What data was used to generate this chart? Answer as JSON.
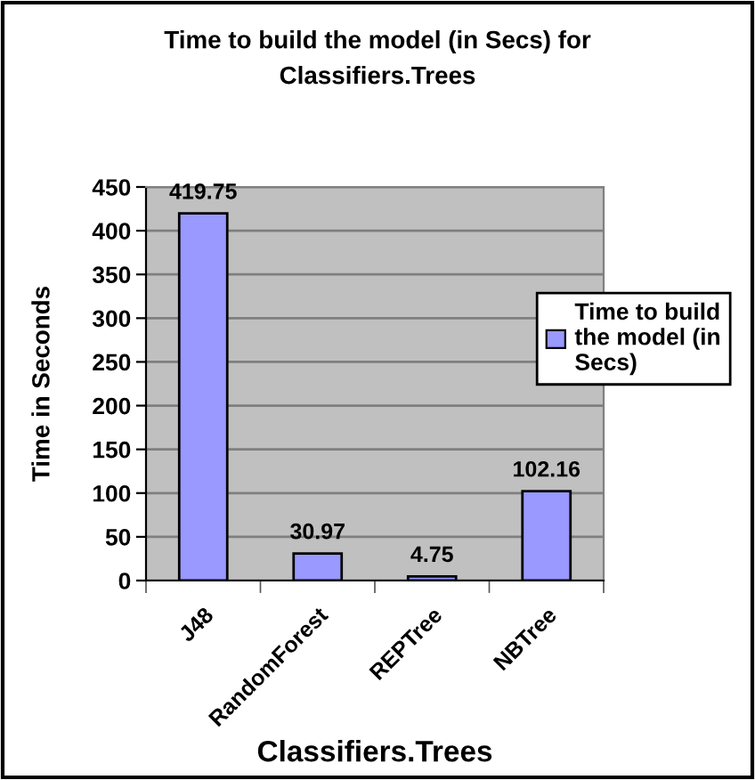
{
  "chart_data": {
    "type": "bar",
    "title": "Time to build the model (in Secs) for Classifiers.Trees",
    "xlabel": "Classifiers.Trees",
    "ylabel": "Time in Seconds",
    "categories": [
      "J48",
      "RandomForest",
      "REPTree",
      "NBTree"
    ],
    "series": [
      {
        "name": "Time to build the model (in Secs)",
        "color": "#9999ff",
        "values": [
          419.75,
          30.97,
          4.75,
          102.16
        ]
      }
    ],
    "ylim": [
      0,
      450
    ],
    "yticks": [
      0,
      50,
      100,
      150,
      200,
      250,
      300,
      350,
      400,
      450
    ],
    "grid": "y",
    "legend": "right",
    "data_labels": true
  }
}
